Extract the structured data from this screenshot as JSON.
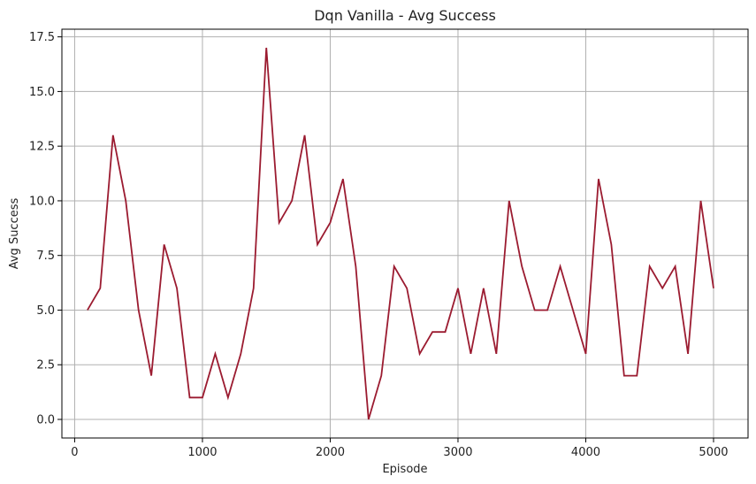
{
  "chart_data": {
    "type": "line",
    "title": "Dqn Vanilla - Avg Success",
    "xlabel": "Episode",
    "ylabel": "Avg Success",
    "xlim": [
      -100,
      5270
    ],
    "ylim": [
      -0.85,
      17.85
    ],
    "xticks": [
      0,
      1000,
      2000,
      3000,
      4000,
      5000
    ],
    "xtick_labels": [
      "0",
      "1000",
      "2000",
      "3000",
      "4000",
      "5000"
    ],
    "yticks": [
      0,
      2.5,
      5,
      7.5,
      10,
      12.5,
      15,
      17.5
    ],
    "ytick_labels": [
      "0.0",
      "2.5",
      "5.0",
      "7.5",
      "10.0",
      "12.5",
      "15.0",
      "17.5"
    ],
    "grid": true,
    "legend": "none",
    "line_color": "#9b1b30",
    "series": [
      {
        "x": [
          100,
          200,
          300,
          400,
          500,
          600,
          700,
          800,
          900,
          1000,
          1100,
          1200,
          1300,
          1400,
          1500,
          1600,
          1700,
          1800,
          1900,
          2000,
          2100,
          2200,
          2300,
          2400,
          2500,
          2600,
          2700,
          2800,
          2900,
          3000,
          3100,
          3200,
          3300,
          3400,
          3500,
          3600,
          3700,
          3800,
          3900,
          4000,
          4100,
          4200,
          4300,
          4400,
          4500,
          4600,
          4700,
          4800,
          4900,
          5000
        ],
        "values": [
          5,
          6,
          13,
          10,
          5,
          2,
          8,
          6,
          1,
          1,
          3,
          1,
          3,
          6,
          17,
          9,
          10,
          13,
          8,
          9,
          11,
          7,
          0,
          2,
          7,
          6,
          3,
          4,
          4,
          6,
          3,
          6,
          3,
          10,
          7,
          5,
          5,
          7,
          5,
          3,
          11,
          8,
          2,
          2,
          7,
          6,
          7,
          3,
          10,
          6
        ]
      }
    ]
  }
}
